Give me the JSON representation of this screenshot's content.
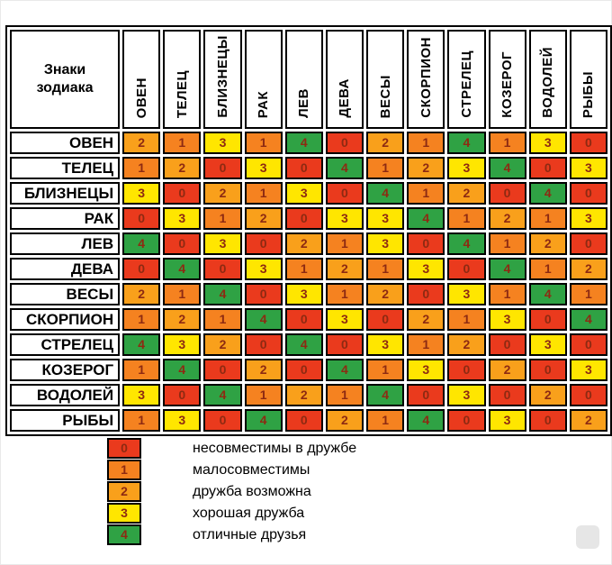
{
  "corner_label": "Знаки зодиака",
  "colors": {
    "0": "#ea3a1d",
    "1": "#f58220",
    "2": "#f9a01b",
    "3": "#ffe600",
    "4": "#2fa244",
    "digit": "#8d2a12",
    "border": "#000000"
  },
  "chart_data": {
    "type": "heatmap",
    "title": "Знаки зодиака",
    "rows": [
      "ОВЕН",
      "ТЕЛЕЦ",
      "БЛИЗНЕЦЫ",
      "РАК",
      "ЛЕВ",
      "ДЕВА",
      "ВЕСЫ",
      "СКОРПИОН",
      "СТРЕЛЕЦ",
      "КОЗЕРОГ",
      "ВОДОЛЕЙ",
      "РЫБЫ"
    ],
    "columns": [
      "ОВЕН",
      "ТЕЛЕЦ",
      "БЛИЗНЕЦЫ",
      "РАК",
      "ЛЕВ",
      "ДЕВА",
      "ВЕСЫ",
      "СКОРПИОН",
      "СТРЕЛЕЦ",
      "КОЗЕРОГ",
      "ВОДОЛЕЙ",
      "РЫБЫ"
    ],
    "values": [
      [
        2,
        1,
        3,
        1,
        4,
        0,
        2,
        1,
        4,
        1,
        3,
        0
      ],
      [
        1,
        2,
        0,
        3,
        0,
        4,
        1,
        2,
        3,
        4,
        0,
        3
      ],
      [
        3,
        0,
        2,
        1,
        3,
        0,
        4,
        1,
        2,
        0,
        4,
        0
      ],
      [
        0,
        3,
        1,
        2,
        0,
        3,
        3,
        4,
        1,
        2,
        1,
        3
      ],
      [
        4,
        0,
        3,
        0,
        2,
        1,
        3,
        0,
        4,
        1,
        2,
        0
      ],
      [
        0,
        4,
        0,
        3,
        1,
        2,
        1,
        3,
        0,
        4,
        1,
        2
      ],
      [
        2,
        1,
        4,
        0,
        3,
        1,
        2,
        0,
        3,
        1,
        4,
        1
      ],
      [
        1,
        2,
        1,
        4,
        0,
        3,
        0,
        2,
        1,
        3,
        0,
        4
      ],
      [
        4,
        3,
        2,
        0,
        4,
        0,
        3,
        1,
        2,
        0,
        3,
        0
      ],
      [
        1,
        4,
        0,
        2,
        0,
        4,
        1,
        3,
        0,
        2,
        0,
        3
      ],
      [
        3,
        0,
        4,
        1,
        2,
        1,
        4,
        0,
        3,
        0,
        2,
        0
      ],
      [
        1,
        3,
        0,
        4,
        0,
        2,
        1,
        4,
        0,
        3,
        0,
        2
      ]
    ],
    "value_scale": [
      0,
      1,
      2,
      3,
      4
    ],
    "legend": [
      {
        "value": 0,
        "label": "несовместимы в дружбе"
      },
      {
        "value": 1,
        "label": "малосовместимы"
      },
      {
        "value": 2,
        "label": "дружба возможна"
      },
      {
        "value": 3,
        "label": "хорошая дружба"
      },
      {
        "value": 4,
        "label": "отличные друзья"
      }
    ],
    "legend_position": "bottom-left",
    "grid": true
  }
}
